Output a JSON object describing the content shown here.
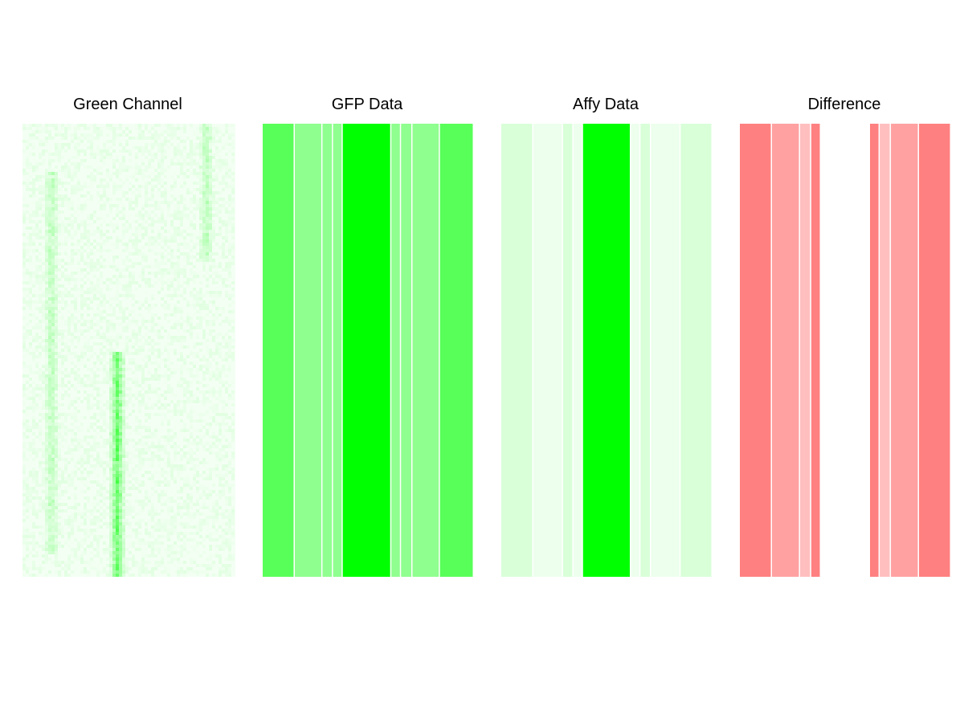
{
  "chart_data": [
    {
      "type": "heatmap",
      "title": "Green Channel",
      "style": "noise-image",
      "base_color": "#00ff00",
      "background_color": "#f4fff4",
      "hot_spots": [
        {
          "x": 0.44,
          "y_start": 0.5,
          "y_end": 1.0,
          "intensity": 0.55
        },
        {
          "x": 0.13,
          "y_start": 0.1,
          "y_end": 0.95,
          "intensity": 0.2
        },
        {
          "x": 0.86,
          "y_start": 0.0,
          "y_end": 0.3,
          "intensity": 0.2
        }
      ]
    },
    {
      "type": "heatmap",
      "title": "GFP Data",
      "palette_rgb": [
        0,
        255,
        0
      ],
      "bands": [
        {
          "width": 0.152,
          "intensity": 0.65
        },
        {
          "width": 0.131,
          "intensity": 0.44
        },
        {
          "width": 0.05,
          "intensity": 0.44
        },
        {
          "width": 0.046,
          "intensity": 0.44
        },
        {
          "width": 0.23,
          "intensity": 1.0
        },
        {
          "width": 0.046,
          "intensity": 0.44
        },
        {
          "width": 0.054,
          "intensity": 0.44
        },
        {
          "width": 0.13,
          "intensity": 0.44
        },
        {
          "width": 0.161,
          "intensity": 0.65
        }
      ]
    },
    {
      "type": "heatmap",
      "title": "Affy Data",
      "palette_rgb": [
        0,
        255,
        0
      ],
      "bands": [
        {
          "width": 0.152,
          "intensity": 0.15
        },
        {
          "width": 0.14,
          "intensity": 0.07
        },
        {
          "width": 0.05,
          "intensity": 0.15
        },
        {
          "width": 0.045,
          "intensity": 0.07
        },
        {
          "width": 0.227,
          "intensity": 1.0
        },
        {
          "width": 0.045,
          "intensity": 0.07
        },
        {
          "width": 0.05,
          "intensity": 0.15
        },
        {
          "width": 0.14,
          "intensity": 0.07
        },
        {
          "width": 0.151,
          "intensity": 0.15
        }
      ]
    },
    {
      "type": "heatmap",
      "title": "Difference",
      "palette_rgb": [
        255,
        0,
        0
      ],
      "bands": [
        {
          "width": 0.152,
          "intensity": 0.5
        },
        {
          "width": 0.133,
          "intensity": 0.37
        },
        {
          "width": 0.053,
          "intensity": 0.25
        },
        {
          "width": 0.046,
          "intensity": 0.5
        },
        {
          "width": 0.232,
          "intensity": 0.0
        },
        {
          "width": 0.046,
          "intensity": 0.5
        },
        {
          "width": 0.053,
          "intensity": 0.25
        },
        {
          "width": 0.133,
          "intensity": 0.37
        },
        {
          "width": 0.152,
          "intensity": 0.5
        }
      ]
    }
  ]
}
